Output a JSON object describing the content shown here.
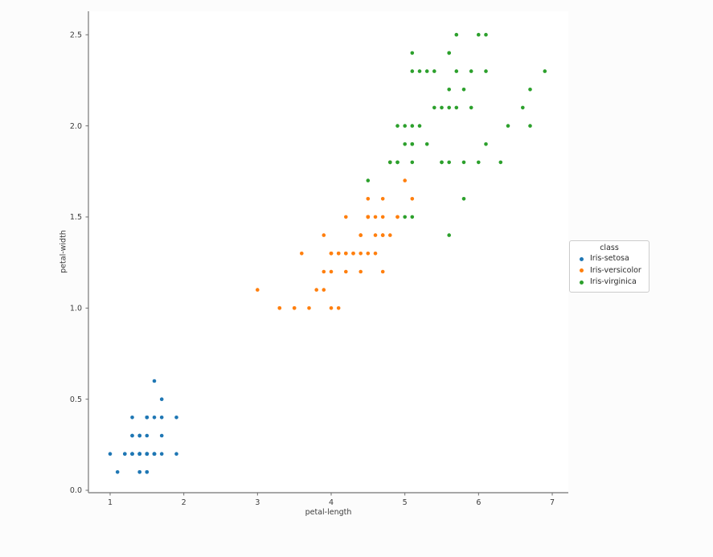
{
  "chart_data": {
    "type": "scatter",
    "title": "",
    "xlabel": "petal-length",
    "ylabel": "petal-width",
    "xlim": [
      0.7055,
      7.218
    ],
    "ylim": [
      -0.0132,
      2.629
    ],
    "x_ticks": [
      1,
      2,
      3,
      4,
      5,
      6,
      7
    ],
    "x_tick_labels": [
      "1",
      "2",
      "3",
      "4",
      "5",
      "6",
      "7"
    ],
    "y_ticks": [
      0.0,
      0.5,
      1.0,
      1.5,
      2.0,
      2.5
    ],
    "y_tick_labels": [
      "0.0",
      "0.5",
      "1.0",
      "1.5",
      "2.0",
      "2.5"
    ],
    "grid": false,
    "legend": {
      "title": "class",
      "position": "right"
    },
    "style": {
      "figure_bg": "#fcfcfc",
      "axes_bg": "#ffffff",
      "spine_color": "#8a8a8a",
      "tick_color": "#6e6e6e",
      "text_color": "#3c3c3c",
      "marker_radius": 2.3
    },
    "series": [
      {
        "name": "Iris-setosa",
        "color": "#1f77b4",
        "points": [
          [
            1.4,
            0.2
          ],
          [
            1.4,
            0.2
          ],
          [
            1.3,
            0.2
          ],
          [
            1.5,
            0.2
          ],
          [
            1.4,
            0.2
          ],
          [
            1.7,
            0.4
          ],
          [
            1.4,
            0.3
          ],
          [
            1.5,
            0.2
          ],
          [
            1.4,
            0.2
          ],
          [
            1.5,
            0.1
          ],
          [
            1.5,
            0.2
          ],
          [
            1.6,
            0.2
          ],
          [
            1.4,
            0.1
          ],
          [
            1.1,
            0.1
          ],
          [
            1.2,
            0.2
          ],
          [
            1.5,
            0.4
          ],
          [
            1.3,
            0.4
          ],
          [
            1.4,
            0.3
          ],
          [
            1.7,
            0.3
          ],
          [
            1.5,
            0.3
          ],
          [
            1.7,
            0.2
          ],
          [
            1.5,
            0.4
          ],
          [
            1.0,
            0.2
          ],
          [
            1.7,
            0.5
          ],
          [
            1.9,
            0.2
          ],
          [
            1.6,
            0.2
          ],
          [
            1.6,
            0.4
          ],
          [
            1.5,
            0.2
          ],
          [
            1.4,
            0.2
          ],
          [
            1.6,
            0.2
          ],
          [
            1.6,
            0.2
          ],
          [
            1.5,
            0.4
          ],
          [
            1.5,
            0.1
          ],
          [
            1.4,
            0.2
          ],
          [
            1.5,
            0.2
          ],
          [
            1.2,
            0.2
          ],
          [
            1.3,
            0.2
          ],
          [
            1.4,
            0.1
          ],
          [
            1.3,
            0.2
          ],
          [
            1.5,
            0.2
          ],
          [
            1.3,
            0.3
          ],
          [
            1.3,
            0.3
          ],
          [
            1.3,
            0.2
          ],
          [
            1.6,
            0.6
          ],
          [
            1.9,
            0.4
          ],
          [
            1.4,
            0.3
          ],
          [
            1.6,
            0.2
          ],
          [
            1.4,
            0.2
          ],
          [
            1.5,
            0.2
          ],
          [
            1.4,
            0.2
          ]
        ]
      },
      {
        "name": "Iris-versicolor",
        "color": "#ff7f0e",
        "points": [
          [
            4.7,
            1.4
          ],
          [
            4.5,
            1.5
          ],
          [
            4.9,
            1.5
          ],
          [
            4.0,
            1.3
          ],
          [
            4.6,
            1.5
          ],
          [
            4.5,
            1.3
          ],
          [
            4.7,
            1.6
          ],
          [
            3.3,
            1.0
          ],
          [
            4.6,
            1.3
          ],
          [
            3.9,
            1.4
          ],
          [
            3.5,
            1.0
          ],
          [
            4.2,
            1.5
          ],
          [
            4.0,
            1.0
          ],
          [
            4.7,
            1.4
          ],
          [
            3.6,
            1.3
          ],
          [
            4.4,
            1.4
          ],
          [
            4.5,
            1.5
          ],
          [
            4.1,
            1.0
          ],
          [
            4.5,
            1.5
          ],
          [
            3.9,
            1.1
          ],
          [
            4.8,
            1.8
          ],
          [
            4.0,
            1.3
          ],
          [
            4.9,
            1.5
          ],
          [
            4.7,
            1.2
          ],
          [
            4.3,
            1.3
          ],
          [
            4.4,
            1.4
          ],
          [
            4.8,
            1.4
          ],
          [
            5.0,
            1.7
          ],
          [
            4.5,
            1.5
          ],
          [
            3.5,
            1.0
          ],
          [
            3.8,
            1.1
          ],
          [
            3.7,
            1.0
          ],
          [
            3.9,
            1.2
          ],
          [
            5.1,
            1.6
          ],
          [
            4.5,
            1.5
          ],
          [
            4.5,
            1.6
          ],
          [
            4.7,
            1.5
          ],
          [
            4.4,
            1.3
          ],
          [
            4.1,
            1.3
          ],
          [
            4.0,
            1.3
          ],
          [
            4.4,
            1.2
          ],
          [
            4.6,
            1.4
          ],
          [
            4.0,
            1.2
          ],
          [
            3.3,
            1.0
          ],
          [
            4.2,
            1.3
          ],
          [
            4.2,
            1.2
          ],
          [
            4.2,
            1.3
          ],
          [
            4.3,
            1.3
          ],
          [
            3.0,
            1.1
          ],
          [
            4.1,
            1.3
          ]
        ]
      },
      {
        "name": "Iris-virginica",
        "color": "#2ca02c",
        "points": [
          [
            6.0,
            2.5
          ],
          [
            5.1,
            1.9
          ],
          [
            5.9,
            2.1
          ],
          [
            5.6,
            1.8
          ],
          [
            5.8,
            2.2
          ],
          [
            6.6,
            2.1
          ],
          [
            4.5,
            1.7
          ],
          [
            6.3,
            1.8
          ],
          [
            5.8,
            1.8
          ],
          [
            6.1,
            2.5
          ],
          [
            5.1,
            2.0
          ],
          [
            5.3,
            1.9
          ],
          [
            5.5,
            2.1
          ],
          [
            5.0,
            2.0
          ],
          [
            5.1,
            2.4
          ],
          [
            5.3,
            2.3
          ],
          [
            5.5,
            1.8
          ],
          [
            6.7,
            2.2
          ],
          [
            6.9,
            2.3
          ],
          [
            5.0,
            1.5
          ],
          [
            5.7,
            2.3
          ],
          [
            4.9,
            2.0
          ],
          [
            6.7,
            2.0
          ],
          [
            4.9,
            1.8
          ],
          [
            5.7,
            2.1
          ],
          [
            6.0,
            1.8
          ],
          [
            4.8,
            1.8
          ],
          [
            4.9,
            1.8
          ],
          [
            5.6,
            2.1
          ],
          [
            5.8,
            1.6
          ],
          [
            6.1,
            1.9
          ],
          [
            6.4,
            2.0
          ],
          [
            5.6,
            2.2
          ],
          [
            5.1,
            1.5
          ],
          [
            5.6,
            1.4
          ],
          [
            6.1,
            2.3
          ],
          [
            5.6,
            2.4
          ],
          [
            5.5,
            1.8
          ],
          [
            4.8,
            1.8
          ],
          [
            5.4,
            2.1
          ],
          [
            5.6,
            2.4
          ],
          [
            5.1,
            2.3
          ],
          [
            5.1,
            1.9
          ],
          [
            5.9,
            2.3
          ],
          [
            5.7,
            2.5
          ],
          [
            5.2,
            2.3
          ],
          [
            5.0,
            1.9
          ],
          [
            5.2,
            2.0
          ],
          [
            5.4,
            2.3
          ],
          [
            5.1,
            1.8
          ]
        ]
      }
    ]
  }
}
